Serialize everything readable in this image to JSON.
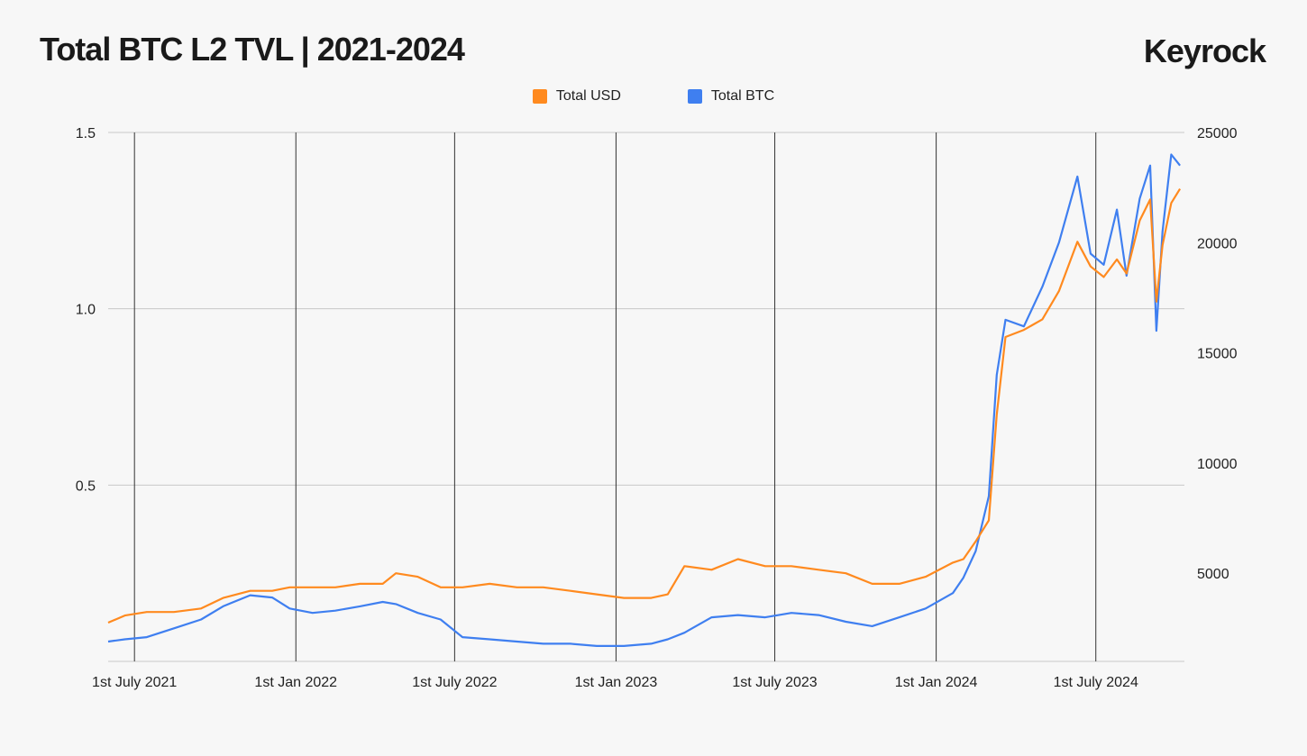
{
  "title": "Total BTC L2 TVL | 2021-2024",
  "brand": "Keyrock",
  "chart_data": {
    "type": "line",
    "title": "Total BTC L2 TVL | 2021-2024",
    "legend_position": "top-center",
    "grid": true,
    "colors": {
      "Total USD": "#ff8a1f",
      "Total BTC": "#3f7ff0"
    },
    "x_tick_labels": [
      "1st July 2021",
      "1st Jan 2022",
      "1st July 2022",
      "1st Jan 2023",
      "1st July 2023",
      "1st Jan 2024",
      "1st July 2024"
    ],
    "x_tick_dates": [
      "2021-07-01",
      "2022-01-01",
      "2022-07-01",
      "2023-01-01",
      "2023-07-01",
      "2024-01-01",
      "2024-07-01"
    ],
    "xlim": [
      "2021-06-01",
      "2024-10-10"
    ],
    "y_left": {
      "ticks": [
        0.5,
        1.0,
        1.5
      ],
      "tick_labels": [
        "0.5",
        "1.0",
        "1.5"
      ],
      "ylim": [
        0,
        1.5
      ]
    },
    "y_right": {
      "ticks": [
        5000,
        10000,
        15000,
        20000,
        25000
      ],
      "tick_labels": [
        "5000",
        "10000",
        "15000",
        "20000",
        "25000"
      ],
      "ylim": [
        1000,
        25000
      ]
    },
    "series": [
      {
        "name": "Total USD",
        "axis": "left",
        "points": [
          [
            "2021-06-01",
            0.11
          ],
          [
            "2021-06-20",
            0.13
          ],
          [
            "2021-07-15",
            0.14
          ],
          [
            "2021-08-15",
            0.14
          ],
          [
            "2021-09-15",
            0.15
          ],
          [
            "2021-10-10",
            0.18
          ],
          [
            "2021-11-10",
            0.2
          ],
          [
            "2021-12-05",
            0.2
          ],
          [
            "2021-12-25",
            0.21
          ],
          [
            "2022-01-20",
            0.21
          ],
          [
            "2022-02-15",
            0.21
          ],
          [
            "2022-03-15",
            0.22
          ],
          [
            "2022-04-10",
            0.22
          ],
          [
            "2022-04-25",
            0.25
          ],
          [
            "2022-05-20",
            0.24
          ],
          [
            "2022-06-15",
            0.21
          ],
          [
            "2022-07-10",
            0.21
          ],
          [
            "2022-08-10",
            0.22
          ],
          [
            "2022-09-10",
            0.21
          ],
          [
            "2022-10-10",
            0.21
          ],
          [
            "2022-11-10",
            0.2
          ],
          [
            "2022-12-10",
            0.19
          ],
          [
            "2023-01-10",
            0.18
          ],
          [
            "2023-02-10",
            0.18
          ],
          [
            "2023-03-01",
            0.19
          ],
          [
            "2023-03-20",
            0.27
          ],
          [
            "2023-04-20",
            0.26
          ],
          [
            "2023-05-20",
            0.29
          ],
          [
            "2023-06-20",
            0.27
          ],
          [
            "2023-07-20",
            0.27
          ],
          [
            "2023-08-20",
            0.26
          ],
          [
            "2023-09-20",
            0.25
          ],
          [
            "2023-10-20",
            0.22
          ],
          [
            "2023-11-20",
            0.22
          ],
          [
            "2023-12-20",
            0.24
          ],
          [
            "2024-01-20",
            0.28
          ],
          [
            "2024-02-01",
            0.29
          ],
          [
            "2024-02-15",
            0.34
          ],
          [
            "2024-03-01",
            0.4
          ],
          [
            "2024-03-10",
            0.7
          ],
          [
            "2024-03-20",
            0.92
          ],
          [
            "2024-04-10",
            0.94
          ],
          [
            "2024-05-01",
            0.97
          ],
          [
            "2024-05-20",
            1.05
          ],
          [
            "2024-06-10",
            1.19
          ],
          [
            "2024-06-25",
            1.12
          ],
          [
            "2024-07-10",
            1.09
          ],
          [
            "2024-07-25",
            1.14
          ],
          [
            "2024-08-05",
            1.1
          ],
          [
            "2024-08-20",
            1.25
          ],
          [
            "2024-09-01",
            1.31
          ],
          [
            "2024-09-08",
            1.02
          ],
          [
            "2024-09-15",
            1.18
          ],
          [
            "2024-09-25",
            1.3
          ],
          [
            "2024-10-05",
            1.34
          ]
        ]
      },
      {
        "name": "Total BTC",
        "axis": "right",
        "points": [
          [
            "2021-06-01",
            1900
          ],
          [
            "2021-06-20",
            2000
          ],
          [
            "2021-07-15",
            2100
          ],
          [
            "2021-08-15",
            2500
          ],
          [
            "2021-09-15",
            2900
          ],
          [
            "2021-10-10",
            3500
          ],
          [
            "2021-11-10",
            4000
          ],
          [
            "2021-12-05",
            3900
          ],
          [
            "2021-12-25",
            3400
          ],
          [
            "2022-01-20",
            3200
          ],
          [
            "2022-02-15",
            3300
          ],
          [
            "2022-03-15",
            3500
          ],
          [
            "2022-04-10",
            3700
          ],
          [
            "2022-04-25",
            3600
          ],
          [
            "2022-05-20",
            3200
          ],
          [
            "2022-06-15",
            2900
          ],
          [
            "2022-07-10",
            2100
          ],
          [
            "2022-08-10",
            2000
          ],
          [
            "2022-09-10",
            1900
          ],
          [
            "2022-10-10",
            1800
          ],
          [
            "2022-11-10",
            1800
          ],
          [
            "2022-12-10",
            1700
          ],
          [
            "2023-01-10",
            1700
          ],
          [
            "2023-02-10",
            1800
          ],
          [
            "2023-03-01",
            2000
          ],
          [
            "2023-03-20",
            2300
          ],
          [
            "2023-04-20",
            3000
          ],
          [
            "2023-05-20",
            3100
          ],
          [
            "2023-06-20",
            3000
          ],
          [
            "2023-07-20",
            3200
          ],
          [
            "2023-08-20",
            3100
          ],
          [
            "2023-09-20",
            2800
          ],
          [
            "2023-10-20",
            2600
          ],
          [
            "2023-11-20",
            3000
          ],
          [
            "2023-12-20",
            3400
          ],
          [
            "2024-01-20",
            4100
          ],
          [
            "2024-02-01",
            4800
          ],
          [
            "2024-02-15",
            6000
          ],
          [
            "2024-03-01",
            8500
          ],
          [
            "2024-03-10",
            14000
          ],
          [
            "2024-03-20",
            16500
          ],
          [
            "2024-04-10",
            16200
          ],
          [
            "2024-05-01",
            18000
          ],
          [
            "2024-05-20",
            20000
          ],
          [
            "2024-06-10",
            23000
          ],
          [
            "2024-06-25",
            19500
          ],
          [
            "2024-07-10",
            19000
          ],
          [
            "2024-07-25",
            21500
          ],
          [
            "2024-08-05",
            18500
          ],
          [
            "2024-08-20",
            22000
          ],
          [
            "2024-09-01",
            23500
          ],
          [
            "2024-09-08",
            16000
          ],
          [
            "2024-09-15",
            20500
          ],
          [
            "2024-09-25",
            24000
          ],
          [
            "2024-10-05",
            23500
          ]
        ]
      }
    ]
  }
}
